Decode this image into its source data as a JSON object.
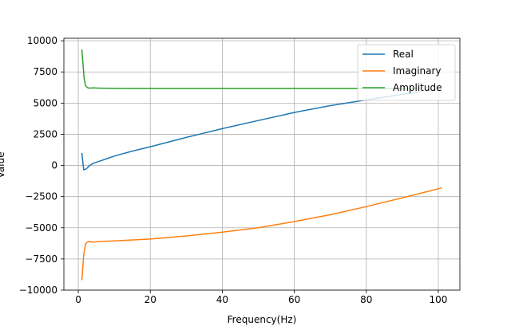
{
  "chart_data": {
    "type": "line",
    "title": "",
    "xlabel": "Frequency(Hz)",
    "ylabel": "Value",
    "xlim": [
      -4,
      106
    ],
    "ylim": [
      -10000,
      10200
    ],
    "xticks": [
      0,
      20,
      40,
      60,
      80,
      100
    ],
    "yticks": [
      -10000,
      -7500,
      -5000,
      -2500,
      0,
      2500,
      5000,
      7500,
      10000
    ],
    "xtick_labels": [
      "0",
      "20",
      "40",
      "60",
      "80",
      "100"
    ],
    "ytick_labels": [
      "−10000",
      "−7500",
      "−5000",
      "−2500",
      "0",
      "2500",
      "5000",
      "7500",
      "10000"
    ],
    "grid": true,
    "legend_position": "top-right",
    "series": [
      {
        "name": "Real",
        "color": "#1f77b4",
        "x": [
          1,
          1.5,
          2,
          2.5,
          3,
          4,
          6,
          8,
          10,
          15,
          20,
          30,
          40,
          50,
          60,
          70,
          80,
          90,
          95
        ],
        "y": [
          1000,
          -350,
          -300,
          -200,
          -50,
          150,
          350,
          550,
          750,
          1150,
          1500,
          2250,
          2950,
          3600,
          4250,
          4800,
          5250,
          5700,
          5900
        ]
      },
      {
        "name": "Imaginary",
        "color": "#ff7f0e",
        "x": [
          1,
          1.5,
          2,
          2.5,
          3,
          4,
          6,
          10,
          20,
          30,
          40,
          50,
          60,
          70,
          80,
          90,
          101
        ],
        "y": [
          -9200,
          -7200,
          -6300,
          -6150,
          -6100,
          -6150,
          -6100,
          -6050,
          -5900,
          -5650,
          -5350,
          -5000,
          -4500,
          -3950,
          -3300,
          -2600,
          -1800
        ]
      },
      {
        "name": "Amplitude",
        "color": "#2ca02c",
        "x": [
          1,
          1.3,
          1.6,
          2,
          2.5,
          3,
          4,
          6,
          10,
          20,
          40,
          60,
          80,
          95
        ],
        "y": [
          9300,
          8200,
          7000,
          6400,
          6250,
          6200,
          6220,
          6200,
          6180,
          6170,
          6170,
          6170,
          6170,
          6170
        ]
      }
    ]
  }
}
